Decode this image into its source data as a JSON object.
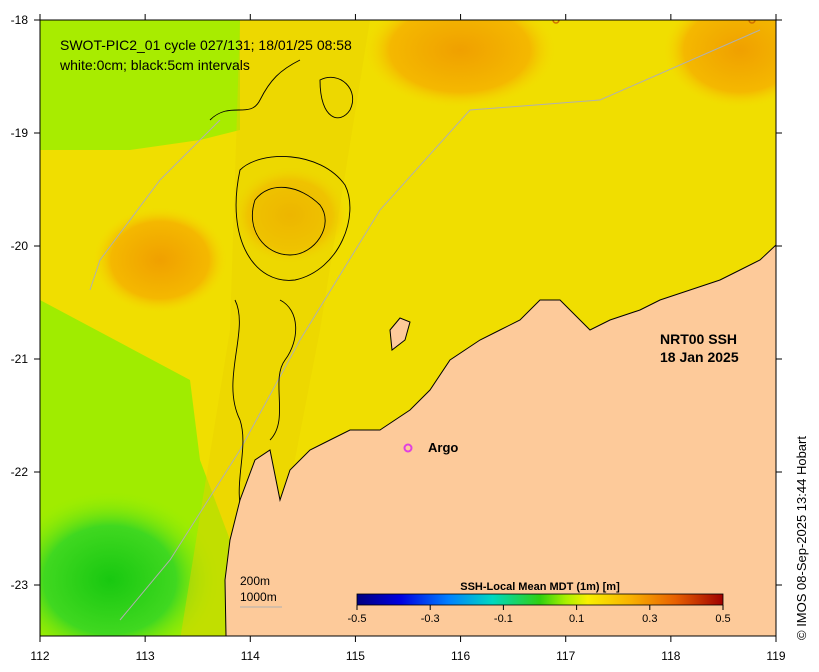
{
  "title_line1": "SWOT-PIC2_01 cycle 027/131; 18/01/25 08:58",
  "title_line2": "white:0cm; black:5cm intervals",
  "product_label": "NRT00 SSH",
  "product_date": "18 Jan 2025",
  "argo_label": "Argo",
  "depth_label_200": "200m",
  "depth_label_1000": "1000m",
  "colorbar_title": "SSH-Local Mean MDT (1m) [m]",
  "colorbar_ticks": [
    "-0.5",
    "-0.3",
    "-0.1",
    "0.1",
    "0.3",
    "0.5"
  ],
  "x_ticks": [
    "112",
    "113",
    "114",
    "115",
    "116",
    "117",
    "118",
    "119"
  ],
  "y_ticks": [
    "-18",
    "-19",
    "-20",
    "-21",
    "-22",
    "-23"
  ],
  "copyright": "© IMOS 08-Sep-2025 13:44 Hobart",
  "colors": {
    "land": "#fdca9a",
    "ocean_base": "#f2e400",
    "argo_marker": "#e040e0"
  }
}
